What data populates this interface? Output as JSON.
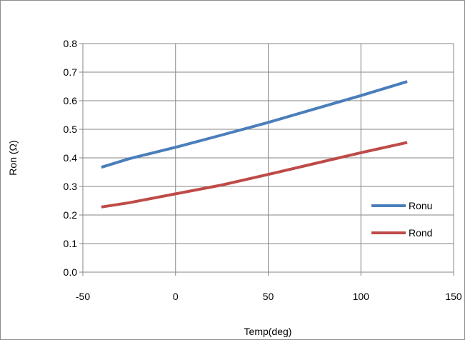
{
  "chart_data": {
    "type": "line",
    "title": "",
    "xlabel": "Temp(deg)",
    "ylabel": "Ron (Ω)",
    "xlim": [
      -50,
      150
    ],
    "ylim": [
      0.0,
      0.8
    ],
    "x_ticks": [
      "-50",
      "0",
      "50",
      "100",
      "150"
    ],
    "y_ticks": [
      "0.0",
      "0.1",
      "0.2",
      "0.3",
      "0.4",
      "0.5",
      "0.6",
      "0.7",
      "0.8"
    ],
    "grid": true,
    "legend_position": "right",
    "series": [
      {
        "name": "Ronu",
        "color": "#4a7ebb",
        "x": [
          -40,
          -25,
          0,
          25,
          50,
          75,
          100,
          125
        ],
        "y": [
          0.367,
          0.397,
          0.437,
          0.48,
          0.524,
          0.571,
          0.618,
          0.667
        ]
      },
      {
        "name": "Rond",
        "color": "#be4b48",
        "x": [
          -40,
          -25,
          0,
          25,
          50,
          75,
          100,
          125
        ],
        "y": [
          0.228,
          0.243,
          0.274,
          0.305,
          0.342,
          0.38,
          0.418,
          0.454
        ]
      }
    ]
  }
}
